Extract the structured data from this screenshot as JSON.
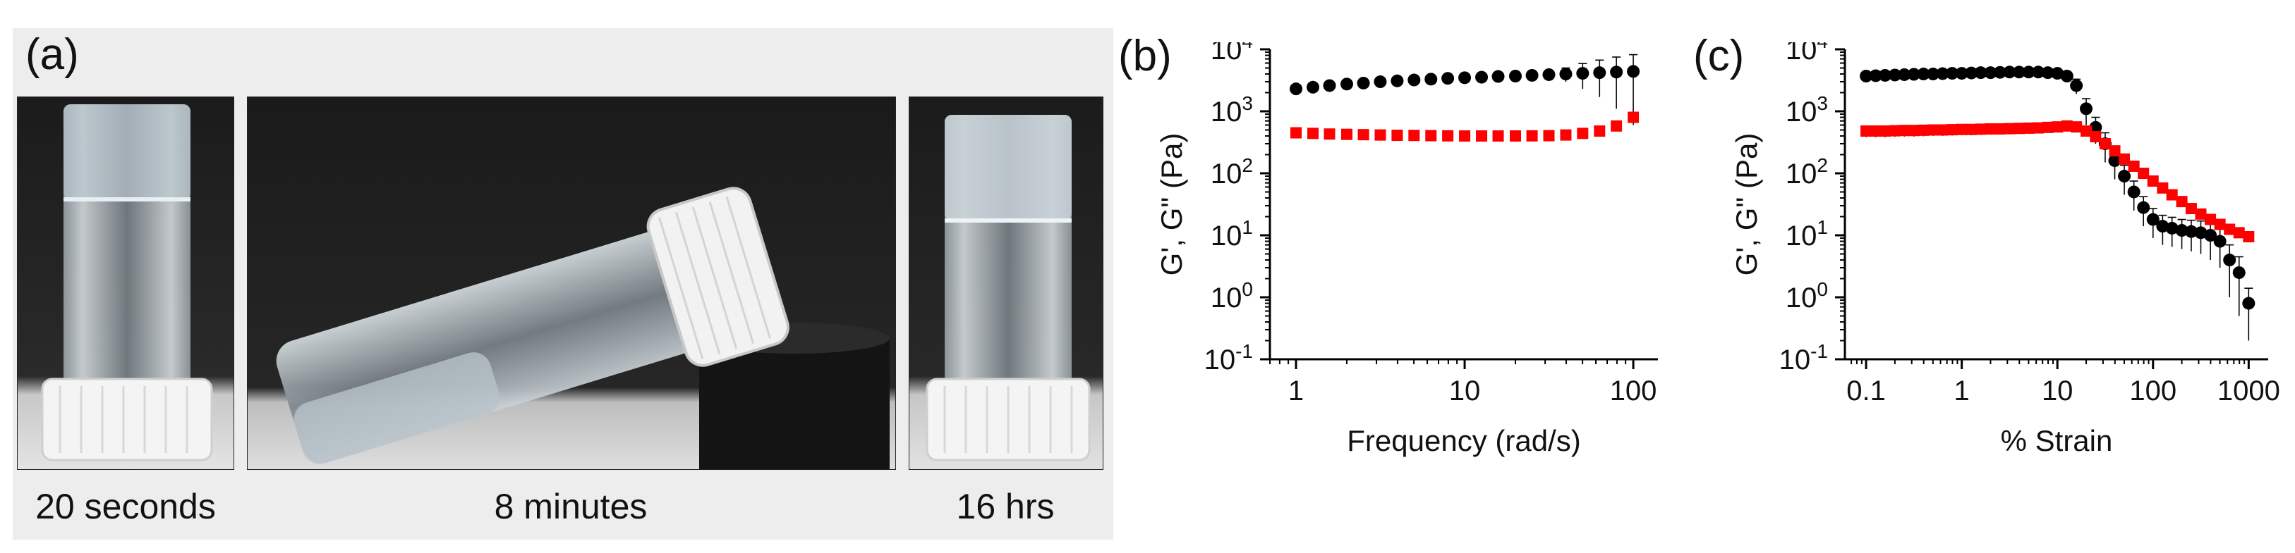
{
  "panels": {
    "a": {
      "label": "(a)",
      "captions": [
        "20 seconds",
        "8 minutes",
        "16 hrs"
      ]
    },
    "b": {
      "label": "(b)"
    },
    "c": {
      "label": "(c)"
    }
  },
  "chart_data": [
    {
      "type": "scatter",
      "xlabel": "Frequency (rad/s)",
      "ylabel": "G', G\" (Pa)",
      "xscale": "log",
      "yscale": "log",
      "xlim": [
        0.7,
        140
      ],
      "ylim": [
        0.1,
        10000
      ],
      "xticks": [
        1,
        10,
        100
      ],
      "xtick_labels": [
        "1",
        "10",
        "100"
      ],
      "yticks": [
        0.1,
        1,
        10,
        100,
        1000,
        10000
      ],
      "ytick_labels": [
        [
          "10",
          "-1"
        ],
        [
          "10",
          "0"
        ],
        [
          "10",
          "1"
        ],
        [
          "10",
          "2"
        ],
        [
          "10",
          "3"
        ],
        [
          "10",
          "4"
        ]
      ],
      "grid": false,
      "series": [
        {
          "color": "#000000",
          "marker": "circle",
          "x": [
            1,
            1.26,
            1.58,
            2,
            2.51,
            3.16,
            3.98,
            5.01,
            6.31,
            7.94,
            10,
            12.6,
            15.8,
            20,
            25.1,
            31.6,
            39.8,
            50.1,
            63.1,
            79.4,
            100
          ],
          "y": [
            2300,
            2450,
            2600,
            2750,
            2850,
            3000,
            3100,
            3200,
            3300,
            3400,
            3480,
            3550,
            3650,
            3700,
            3800,
            3900,
            4000,
            4100,
            4200,
            4300,
            4400
          ],
          "err": [
            150,
            150,
            150,
            150,
            150,
            150,
            150,
            150,
            150,
            150,
            150,
            150,
            150,
            150,
            200,
            500,
            1000,
            1800,
            2500,
            3200,
            3800
          ]
        },
        {
          "color": "#ff0000",
          "marker": "square",
          "x": [
            1,
            1.26,
            1.58,
            2,
            2.51,
            3.16,
            3.98,
            5.01,
            6.31,
            7.94,
            10,
            12.6,
            15.8,
            20,
            25.1,
            31.6,
            39.8,
            50.1,
            63.1,
            79.4,
            100
          ],
          "y": [
            450,
            440,
            430,
            425,
            420,
            415,
            410,
            408,
            405,
            402,
            400,
            400,
            400,
            400,
            402,
            405,
            415,
            440,
            480,
            580,
            800
          ],
          "err": [
            40,
            40,
            40,
            40,
            40,
            40,
            40,
            40,
            40,
            40,
            40,
            40,
            40,
            40,
            40,
            40,
            40,
            50,
            60,
            80,
            150
          ]
        }
      ]
    },
    {
      "type": "scatter",
      "xlabel": "% Strain",
      "ylabel": "G', G\" (Pa)",
      "xscale": "log",
      "yscale": "log",
      "xlim": [
        0.06,
        1600
      ],
      "ylim": [
        0.1,
        10000
      ],
      "xticks": [
        0.1,
        1,
        10,
        100,
        1000
      ],
      "xtick_labels": [
        "0.1",
        "1",
        "10",
        "100",
        "1000"
      ],
      "yticks": [
        0.1,
        1,
        10,
        100,
        1000,
        10000
      ],
      "ytick_labels": [
        [
          "10",
          "-1"
        ],
        [
          "10",
          "0"
        ],
        [
          "10",
          "1"
        ],
        [
          "10",
          "2"
        ],
        [
          "10",
          "3"
        ],
        [
          "10",
          "4"
        ]
      ],
      "grid": false,
      "series": [
        {
          "color": "#000000",
          "marker": "circle",
          "x": [
            0.1,
            0.126,
            0.158,
            0.2,
            0.251,
            0.316,
            0.398,
            0.501,
            0.631,
            0.794,
            1,
            1.26,
            1.58,
            2,
            2.51,
            3.16,
            3.98,
            5.01,
            6.31,
            7.94,
            10,
            12.6,
            15.8,
            20,
            25.1,
            31.6,
            39.8,
            50.1,
            63.1,
            79.4,
            100,
            126,
            158,
            200,
            251,
            316,
            398,
            501,
            631,
            794,
            1000
          ],
          "y": [
            3700,
            3750,
            3800,
            3850,
            3900,
            3950,
            4000,
            4000,
            4050,
            4100,
            4100,
            4150,
            4200,
            4200,
            4250,
            4300,
            4300,
            4300,
            4300,
            4200,
            4100,
            3700,
            2600,
            1100,
            550,
            300,
            160,
            90,
            50,
            28,
            18,
            14,
            13,
            12,
            11.5,
            11,
            10,
            8,
            4,
            2.5,
            0.8
          ],
          "err": [
            400,
            400,
            400,
            400,
            400,
            400,
            400,
            400,
            400,
            400,
            400,
            400,
            400,
            400,
            400,
            400,
            400,
            400,
            400,
            400,
            400,
            500,
            700,
            500,
            250,
            150,
            80,
            45,
            25,
            14,
            9,
            7,
            6.5,
            6,
            6,
            6,
            6,
            5,
            3,
            2,
            0.6
          ]
        },
        {
          "color": "#ff0000",
          "marker": "square",
          "x": [
            0.1,
            0.126,
            0.158,
            0.2,
            0.251,
            0.316,
            0.398,
            0.501,
            0.631,
            0.794,
            1,
            1.26,
            1.58,
            2,
            2.51,
            3.16,
            3.98,
            5.01,
            6.31,
            7.94,
            10,
            12.6,
            15.8,
            20,
            25.1,
            31.6,
            39.8,
            50.1,
            63.1,
            79.4,
            100,
            126,
            158,
            200,
            251,
            316,
            398,
            501,
            631,
            794,
            1000
          ],
          "y": [
            480,
            480,
            480,
            485,
            490,
            490,
            495,
            500,
            500,
            505,
            510,
            510,
            515,
            520,
            520,
            525,
            530,
            535,
            540,
            550,
            560,
            580,
            560,
            480,
            390,
            300,
            230,
            170,
            130,
            100,
            75,
            58,
            45,
            35,
            27,
            22,
            18,
            15,
            12.5,
            11,
            9.5
          ],
          "err": [
            100,
            100,
            100,
            100,
            100,
            100,
            100,
            100,
            100,
            100,
            100,
            100,
            100,
            100,
            100,
            100,
            100,
            100,
            100,
            100,
            100,
            100,
            100,
            80,
            60,
            40,
            30,
            20,
            15,
            10,
            8,
            6,
            5,
            4,
            3,
            3,
            2.5,
            2,
            1.8,
            1.5,
            1.5
          ]
        }
      ]
    }
  ]
}
